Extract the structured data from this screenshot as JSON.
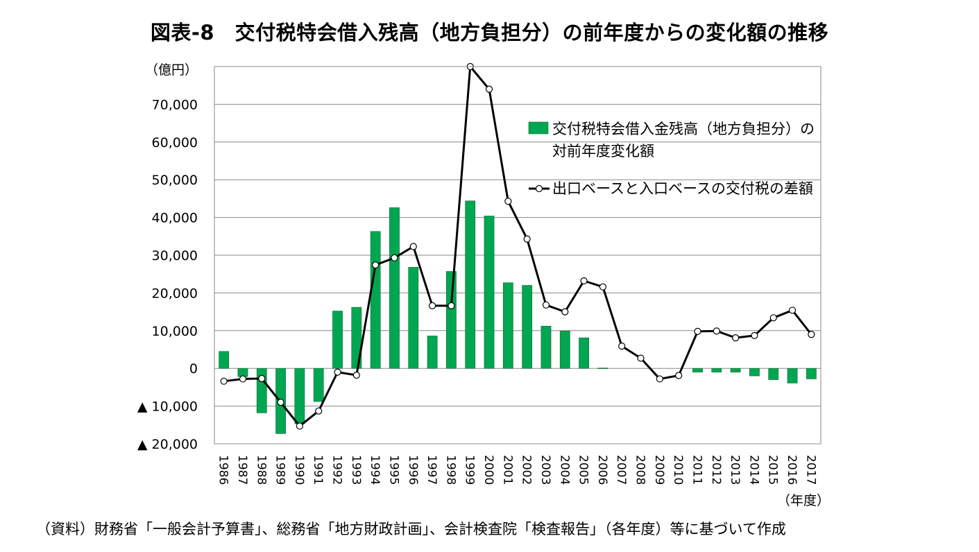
{
  "chart_data": {
    "type": "bar",
    "title": "図表-8　交付税特会借入残高（地方負担分）の前年度からの変化額の推移",
    "yunit": "（億円）",
    "xunit": "（年度）",
    "source": "（資料）財務省「一般会計予算書」、総務省「地方財政計画」、会計検査院「検査報告」（各年度）等に基づいて作成",
    "ylim": [
      -20000,
      80000
    ],
    "grid": true,
    "legend_position": "right-top",
    "yticks": [
      {
        "value": 70000,
        "label": "70,000"
      },
      {
        "value": 60000,
        "label": "60,000"
      },
      {
        "value": 50000,
        "label": "50,000"
      },
      {
        "value": 40000,
        "label": "40,000"
      },
      {
        "value": 30000,
        "label": "30,000"
      },
      {
        "value": 20000,
        "label": "20,000"
      },
      {
        "value": 10000,
        "label": "10,000"
      },
      {
        "value": 0,
        "label": "0"
      },
      {
        "value": -10000,
        "label": "▲ 10,000"
      },
      {
        "value": -20000,
        "label": "▲ 20,000"
      }
    ],
    "categories": [
      "1986",
      "1987",
      "1988",
      "1989",
      "1990",
      "1991",
      "1992",
      "1993",
      "1994",
      "1995",
      "1996",
      "1997",
      "1998",
      "1999",
      "2000",
      "2001",
      "2002",
      "2003",
      "2004",
      "2005",
      "2006",
      "2007",
      "2008",
      "2009",
      "2010",
      "2011",
      "2012",
      "2013",
      "2014",
      "2015",
      "2016",
      "2017"
    ],
    "series": [
      {
        "name": "交付税特会借入金残高（地方負担分）の対前年度変化額",
        "type": "bar",
        "color": "#00a650",
        "values": [
          4500,
          -2200,
          -11800,
          -17300,
          -14700,
          -8800,
          15200,
          16200,
          36300,
          42600,
          26800,
          8600,
          25700,
          44400,
          40400,
          22700,
          22000,
          11200,
          9900,
          8100,
          100,
          0,
          0,
          0,
          0,
          -1000,
          -1000,
          -1000,
          -2000,
          -3000,
          -3900,
          -2800
        ]
      },
      {
        "name": "出口ベースと入口ベースの交付税の差額",
        "type": "line",
        "color": "#000000",
        "values": [
          -3400,
          -2800,
          -2700,
          -9000,
          -15300,
          -11300,
          -1000,
          -1800,
          27400,
          29300,
          32300,
          16600,
          16600,
          80000,
          74000,
          44300,
          34300,
          16800,
          15000,
          23200,
          21600,
          5900,
          2700,
          -2800,
          -1900,
          9800,
          9900,
          8100,
          8700,
          13400,
          15400,
          9000
        ]
      }
    ]
  }
}
